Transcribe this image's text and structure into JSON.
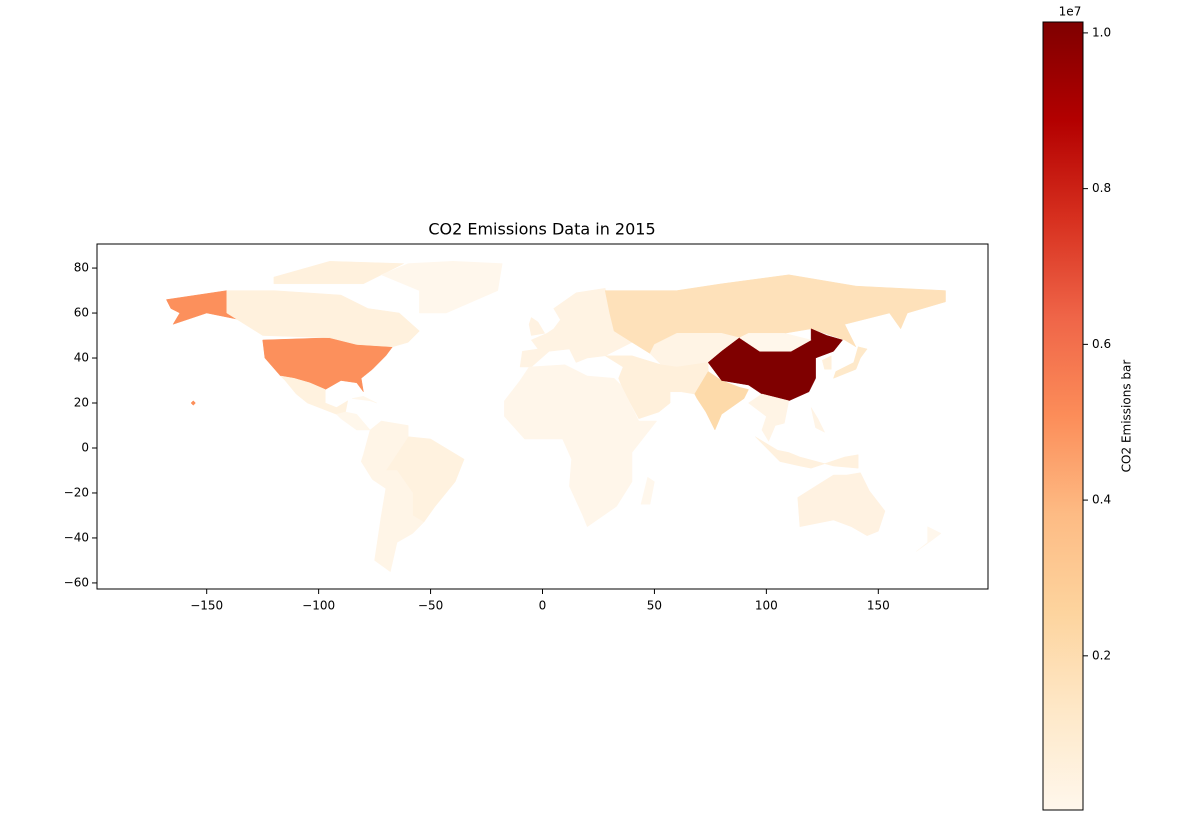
{
  "chart_data": {
    "type": "choropleth",
    "title": "CO2 Emissions Data in 2015",
    "values": [
      5000000,
      550000,
      470000,
      30000,
      60000,
      480000,
      200000,
      350000,
      400000,
      1700000,
      280000,
      600000,
      100000,
      2200000,
      10140000,
      60000,
      250000,
      1200000,
      600000,
      500000,
      400000,
      35000,
      20000
    ],
    "xlim": [
      -199,
      199
    ],
    "ylim": [
      -62.7,
      90.7
    ],
    "xticks": [
      {
        "value": -150,
        "label": "−150"
      },
      {
        "value": -100,
        "label": "−100"
      },
      {
        "value": -50,
        "label": "−50"
      },
      0,
      50,
      100,
      150
    ],
    "yticks": [
      {
        "value": -60,
        "label": "−60"
      },
      {
        "value": -40,
        "label": "−40"
      },
      {
        "value": -20,
        "label": "−20"
      },
      0,
      20,
      40,
      60,
      80
    ],
    "colorbar": {
      "label": "CO2 Emissions bar",
      "offset_label": "1e7",
      "colormap": "OrRd",
      "ylim": [
        20000,
        10140000
      ],
      "yticks": [
        {
          "value": 2000000,
          "label": "0.2"
        },
        {
          "value": 4000000,
          "label": "0.4"
        },
        {
          "value": 6000000,
          "label": "0.6"
        },
        {
          "value": 8000000,
          "label": "0.8"
        },
        {
          "value": 10000000,
          "label": "1.0"
        }
      ]
    }
  }
}
